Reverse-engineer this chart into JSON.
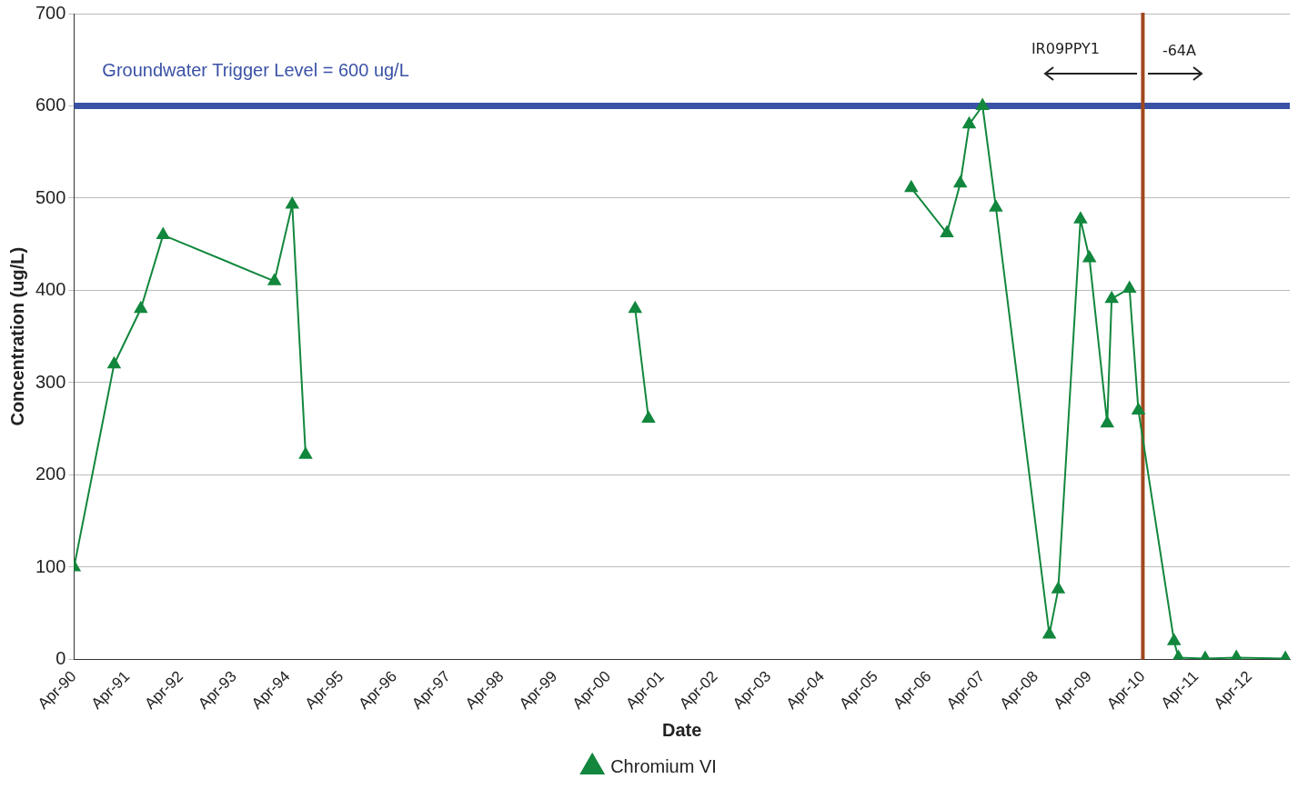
{
  "chart_data": {
    "type": "line",
    "xlabel": "Date",
    "ylabel": "Concentration (ug/L)",
    "x": [
      "1990-04",
      "1991-01",
      "1991-07",
      "1991-12",
      "1994-01",
      "1994-05",
      "1994-08",
      "1997-06",
      "2000-10",
      "2001-01",
      "2003-06",
      "2005-12",
      "2006-08",
      "2006-11",
      "2007-01",
      "2007-04",
      "2007-07",
      "2008-07",
      "2008-09",
      "2009-02",
      "2009-04",
      "2009-08",
      "2009-09",
      "2010-01",
      "2010-03",
      "2010-11",
      "2010-12",
      "2011-06",
      "2012-01",
      "2012-12"
    ],
    "series": [
      {
        "name": "Chromium VI",
        "color": "#12873d",
        "values": [
          100,
          320,
          380,
          460,
          410,
          493,
          222,
          null,
          380,
          261,
          null,
          511,
          462,
          516,
          580,
          600,
          490,
          27,
          76,
          477,
          435,
          256,
          391,
          402,
          270,
          20,
          2,
          1,
          2,
          1
        ]
      }
    ],
    "xlim": [
      "1990-04",
      "2013-01"
    ],
    "xticks": [
      {
        "value": "1990-04",
        "label": "Apr-90"
      },
      {
        "value": "1991-04",
        "label": "Apr-91"
      },
      {
        "value": "1992-04",
        "label": "Apr-92"
      },
      {
        "value": "1993-04",
        "label": "Apr-93"
      },
      {
        "value": "1994-04",
        "label": "Apr-94"
      },
      {
        "value": "1995-04",
        "label": "Apr-95"
      },
      {
        "value": "1996-04",
        "label": "Apr-96"
      },
      {
        "value": "1997-04",
        "label": "Apr-97"
      },
      {
        "value": "1998-04",
        "label": "Apr-98"
      },
      {
        "value": "1999-04",
        "label": "Apr-99"
      },
      {
        "value": "2000-04",
        "label": "Apr-00"
      },
      {
        "value": "2001-04",
        "label": "Apr-01"
      },
      {
        "value": "2002-04",
        "label": "Apr-02"
      },
      {
        "value": "2003-04",
        "label": "Apr-03"
      },
      {
        "value": "2004-04",
        "label": "Apr-04"
      },
      {
        "value": "2005-04",
        "label": "Apr-05"
      },
      {
        "value": "2006-04",
        "label": "Apr-06"
      },
      {
        "value": "2007-04",
        "label": "Apr-07"
      },
      {
        "value": "2008-04",
        "label": "Apr-08"
      },
      {
        "value": "2009-04",
        "label": "Apr-09"
      },
      {
        "value": "2010-04",
        "label": "Apr-10"
      },
      {
        "value": "2011-04",
        "label": "Apr-11"
      },
      {
        "value": "2012-04",
        "label": "Apr-12"
      }
    ],
    "ylim": [
      0,
      700
    ],
    "yticks": [
      0,
      100,
      200,
      300,
      400,
      500,
      600,
      700
    ],
    "ref_lines": [
      {
        "axis": "y",
        "value": 600,
        "label": "Groundwater Trigger Level = 600 ug/L",
        "color": "#3a52a6"
      },
      {
        "axis": "x",
        "value": "2010-04",
        "color": "#a0481e"
      }
    ],
    "annotations": [
      "IR09PPY1",
      "-64A"
    ],
    "grid": "y",
    "legend": "bottom",
    "marker": "triangle",
    "line_style": "solid"
  }
}
